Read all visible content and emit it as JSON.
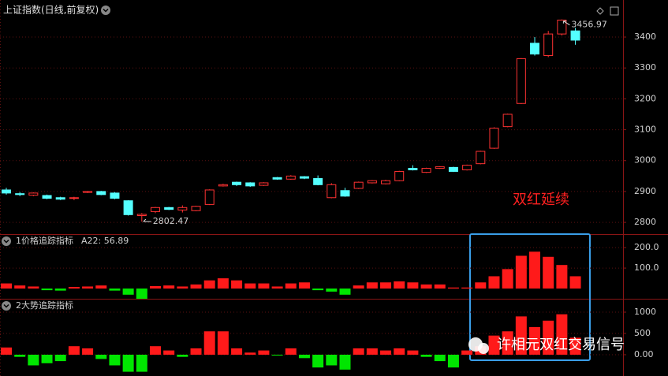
{
  "chart_data": [
    {
      "type": "candlestick",
      "title": "上证指数(日线,前复权)",
      "open": [
        2905,
        2893,
        2888,
        2887,
        2880,
        2878,
        2897,
        2900,
        2895,
        2870,
        2822,
        2835,
        2848,
        2840,
        2838,
        2858,
        2918,
        2930,
        2928,
        2920,
        2945,
        2940,
        2948,
        2942,
        2880,
        2903,
        2910,
        2928,
        2925,
        2935,
        2975,
        2962,
        2975,
        2978,
        2970,
        2990,
        3040,
        3110,
        3185,
        3380,
        3340,
        3410,
        3420
      ],
      "high": [
        2912,
        2898,
        2897,
        2890,
        2883,
        2883,
        2902,
        2902,
        2898,
        2872,
        2830,
        2850,
        2850,
        2855,
        2854,
        2907,
        2925,
        2932,
        2930,
        2930,
        2947,
        2953,
        2950,
        2952,
        2927,
        2912,
        2932,
        2937,
        2938,
        2967,
        2985,
        2977,
        2982,
        2980,
        2987,
        3032,
        3108,
        3152,
        3332,
        3400,
        3420,
        3456.97,
        3430
      ],
      "low": [
        2890,
        2885,
        2885,
        2875,
        2872,
        2872,
        2895,
        2888,
        2875,
        2822,
        2802.47,
        2830,
        2840,
        2832,
        2836,
        2856,
        2916,
        2918,
        2915,
        2918,
        2938,
        2938,
        2940,
        2920,
        2878,
        2883,
        2908,
        2926,
        2923,
        2933,
        2968,
        2960,
        2973,
        2963,
        2968,
        2988,
        3038,
        3108,
        3183,
        3340,
        3335,
        3405,
        3375
      ],
      "close": [
        2895,
        2890,
        2895,
        2878,
        2875,
        2880,
        2900,
        2890,
        2878,
        2825,
        2826,
        2848,
        2842,
        2848,
        2852,
        2905,
        2922,
        2922,
        2918,
        2928,
        2940,
        2950,
        2943,
        2922,
        2922,
        2885,
        2930,
        2935,
        2935,
        2965,
        2970,
        2975,
        2980,
        2965,
        2985,
        3030,
        3105,
        3150,
        3330,
        3345,
        3410,
        3455,
        3390
      ],
      "high_label": "3456.97",
      "low_label": "2802.47",
      "up_color": "#ff3232",
      "down_color": "#54ffff",
      "ylim": [
        2762,
        3520
      ],
      "yticks": [
        2800,
        2900,
        3000,
        3100,
        3200,
        3300,
        3400
      ],
      "grid": true,
      "annotation": "双红延续"
    },
    {
      "type": "bar",
      "title": "1价格追踪指标",
      "legend_text": "A22: 56.89",
      "values": [
        25,
        15,
        10,
        -8,
        -10,
        8,
        10,
        15,
        -10,
        -30,
        -50,
        12,
        15,
        10,
        20,
        40,
        50,
        40,
        25,
        25,
        10,
        25,
        30,
        -8,
        -15,
        -30,
        15,
        30,
        30,
        35,
        30,
        20,
        20,
        5,
        5,
        30,
        60,
        95,
        160,
        180,
        155,
        115,
        60
      ],
      "up_color": "#ff1a1a",
      "down_color": "#00e600",
      "ylim": [
        -46,
        262
      ],
      "yticks": [
        {
          "value": 100,
          "label": "100.0"
        },
        {
          "value": 200,
          "label": "200.0"
        }
      ],
      "grid": true
    },
    {
      "type": "bar",
      "title": "2大势追踪指标",
      "values": [
        170,
        -50,
        -250,
        -200,
        -150,
        200,
        150,
        -100,
        -250,
        -400,
        -400,
        200,
        100,
        -50,
        150,
        550,
        550,
        150,
        50,
        100,
        -20,
        150,
        -80,
        -300,
        -250,
        -350,
        150,
        150,
        100,
        150,
        100,
        -50,
        -150,
        -300,
        100,
        200,
        450,
        550,
        900,
        650,
        800,
        950,
        400
      ],
      "up_color": "#ff1a1a",
      "down_color": "#00e600",
      "ylim": [
        -500,
        1296
      ],
      "yticks": [
        {
          "value": 0,
          "label": "0.00"
        },
        500,
        1000
      ],
      "grid": true
    }
  ],
  "watermark": "许相元双红交易信号"
}
